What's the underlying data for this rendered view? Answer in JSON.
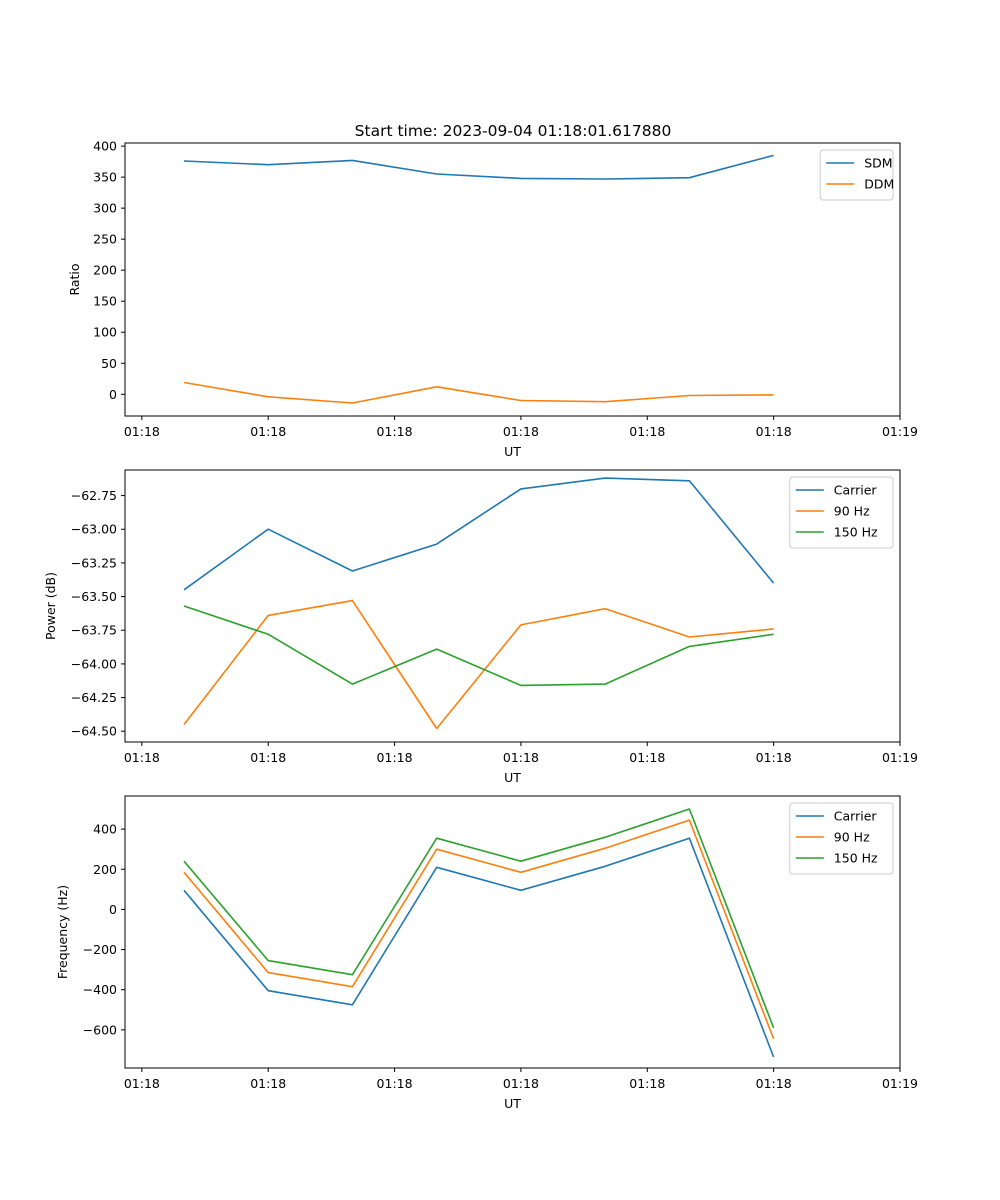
{
  "figure_title": "Start time: 2023-09-04 01:18:01.617880",
  "colors": {
    "blue": "#1f77b4",
    "orange": "#ff7f0e",
    "green": "#2ca02c"
  },
  "chart_data": [
    {
      "type": "line",
      "title": "Start time: 2023-09-04 01:18:01.617880",
      "xlabel": "UT",
      "ylabel": "Ratio",
      "x": [
        1,
        2,
        3,
        4,
        5,
        6,
        7,
        8
      ],
      "xlim": [
        0.3,
        9.5
      ],
      "x_ticks": [
        0.5,
        2,
        3.5,
        5,
        6.5,
        8,
        9.5
      ],
      "x_tick_labels": [
        "01:18",
        "01:18",
        "01:18",
        "01:18",
        "01:18",
        "01:18",
        "01:19"
      ],
      "ylim": [
        -35,
        405
      ],
      "y_ticks": [
        0,
        50,
        100,
        150,
        200,
        250,
        300,
        350,
        400
      ],
      "y_tick_labels": [
        "0",
        "50",
        "100",
        "150",
        "200",
        "250",
        "300",
        "350",
        "400"
      ],
      "legend": "top-right",
      "series": [
        {
          "name": "SDM",
          "color": "#1f77b4",
          "values": [
            376,
            370,
            377,
            355,
            348,
            347,
            349,
            385
          ]
        },
        {
          "name": "DDM",
          "color": "#ff7f0e",
          "values": [
            19,
            -4,
            -14,
            12,
            -10,
            -12,
            -2,
            -1
          ]
        }
      ]
    },
    {
      "type": "line",
      "title": "",
      "xlabel": "UT",
      "ylabel": "Power (dB)",
      "x": [
        1,
        2,
        3,
        4,
        5,
        6,
        7,
        8
      ],
      "xlim": [
        0.3,
        9.5
      ],
      "x_ticks": [
        0.5,
        2,
        3.5,
        5,
        6.5,
        8,
        9.5
      ],
      "x_tick_labels": [
        "01:18",
        "01:18",
        "01:18",
        "01:18",
        "01:18",
        "01:18",
        "01:19"
      ],
      "ylim": [
        -64.58,
        -62.56
      ],
      "y_ticks": [
        -64.5,
        -64.25,
        -64.0,
        -63.75,
        -63.5,
        -63.25,
        -63.0,
        -62.75
      ],
      "y_tick_labels": [
        "−64.50",
        "−64.25",
        "−64.00",
        "−63.75",
        "−63.50",
        "−63.25",
        "−63.00",
        "−62.75"
      ],
      "legend": "top-right",
      "series": [
        {
          "name": "Carrier",
          "color": "#1f77b4",
          "values": [
            -63.45,
            -63.0,
            -63.31,
            -63.11,
            -62.7,
            -62.62,
            -62.64,
            -63.4
          ]
        },
        {
          "name": "90 Hz",
          "color": "#ff7f0e",
          "values": [
            -64.45,
            -63.64,
            -63.53,
            -64.48,
            -63.71,
            -63.59,
            -63.8,
            -63.74
          ]
        },
        {
          "name": "150 Hz",
          "color": "#2ca02c",
          "values": [
            -63.57,
            -63.78,
            -64.15,
            -63.89,
            -64.16,
            -64.15,
            -63.87,
            -63.78
          ]
        }
      ]
    },
    {
      "type": "line",
      "title": "",
      "xlabel": "UT",
      "ylabel": "Frequency (Hz)",
      "x": [
        1,
        2,
        3,
        4,
        5,
        6,
        7,
        8
      ],
      "xlim": [
        0.3,
        9.5
      ],
      "x_ticks": [
        0.5,
        2,
        3.5,
        5,
        6.5,
        8,
        9.5
      ],
      "x_tick_labels": [
        "01:18",
        "01:18",
        "01:18",
        "01:18",
        "01:18",
        "01:18",
        "01:19"
      ],
      "ylim": [
        -790,
        565
      ],
      "y_ticks": [
        -600,
        -400,
        -200,
        0,
        200,
        400
      ],
      "y_tick_labels": [
        "−600",
        "−400",
        "−200",
        "0",
        "200",
        "400"
      ],
      "legend": "top-right",
      "series": [
        {
          "name": "Carrier",
          "color": "#1f77b4",
          "values": [
            95,
            -405,
            -475,
            210,
            95,
            215,
            355,
            -735
          ]
        },
        {
          "name": "90 Hz",
          "color": "#ff7f0e",
          "values": [
            185,
            -315,
            -385,
            300,
            185,
            305,
            445,
            -645
          ]
        },
        {
          "name": "150 Hz",
          "color": "#2ca02c",
          "values": [
            240,
            -255,
            -325,
            355,
            240,
            360,
            500,
            -590
          ]
        }
      ]
    }
  ]
}
